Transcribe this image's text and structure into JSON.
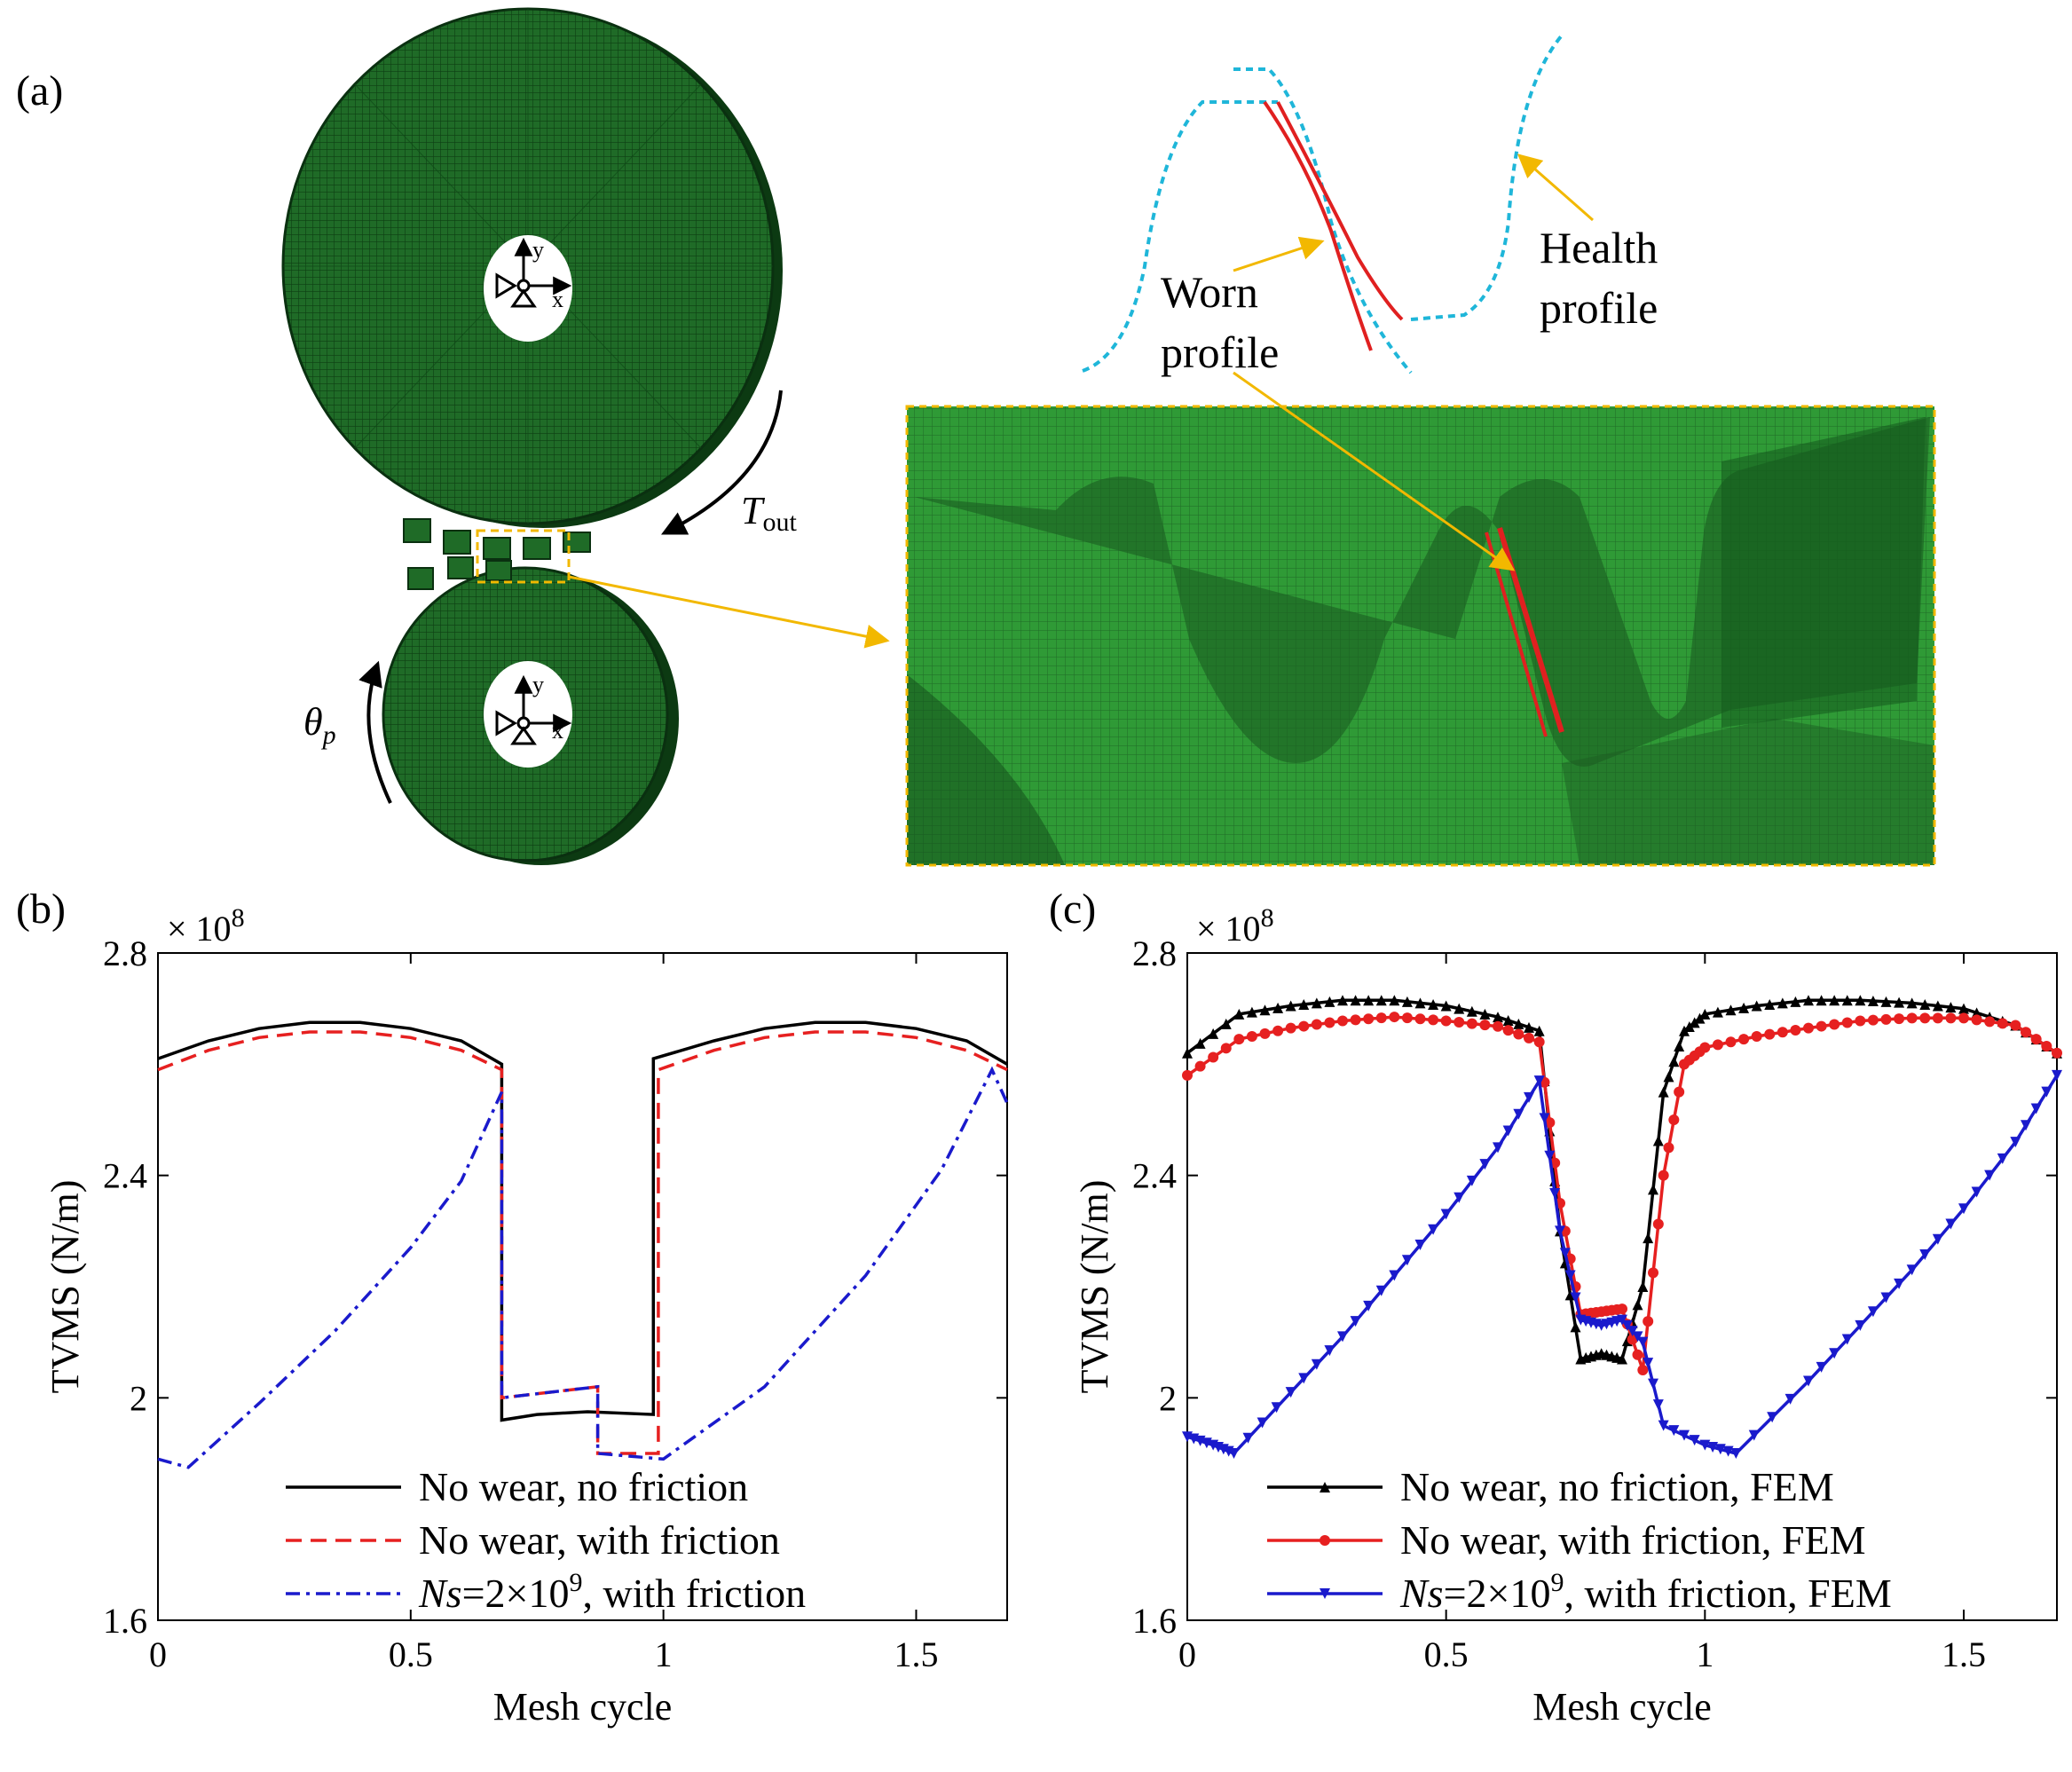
{
  "panel_labels": {
    "a": "(a)",
    "b": "(b)",
    "c": "(c)"
  },
  "colors": {
    "mesh_green": "#2f8f2f",
    "mesh_dark": "#0f4a16",
    "arrow_orange": "#f2b800",
    "worn_red": "#e02020",
    "health_cyan": "#1fb6d9",
    "series_black": "#000000",
    "series_red": "#e62020",
    "series_blue": "#1a1acc"
  },
  "fem_annotations": {
    "t_out_symbol": "T",
    "t_out_sub": "out",
    "theta_symbol": "θ",
    "theta_sub": "p",
    "axis_y": "y",
    "axis_x": "x",
    "worn_label_line1": "Worn",
    "worn_label_line2": "profile",
    "health_label_line1": "Health",
    "health_label_line2": "profile"
  },
  "chart_data": [
    {
      "type": "line",
      "panel": "(b)",
      "xlabel": "Mesh cycle",
      "ylabel": "TVMS (N/m)",
      "y_multiplier": "× 10",
      "y_multiplier_exp": "8",
      "xlim": [
        0,
        1.68
      ],
      "ylim": [
        1.6,
        2.8
      ],
      "xticks": [
        0,
        0.5,
        1,
        1.5
      ],
      "xtick_labels": [
        "0",
        "0.5",
        "1",
        "1.5"
      ],
      "yticks": [
        1.6,
        2.0,
        2.4,
        2.8
      ],
      "ytick_labels": [
        "1.6",
        "2",
        "2.4",
        "2.8"
      ],
      "grid": false,
      "legend_position": "bottom-center",
      "series": [
        {
          "name": "No wear, no friction",
          "color": "#000000",
          "dash": "solid",
          "x": [
            0,
            0.1,
            0.2,
            0.3,
            0.4,
            0.5,
            0.6,
            0.68,
            0.68,
            0.75,
            0.85,
            0.98,
            0.98,
            1.1,
            1.2,
            1.3,
            1.4,
            1.5,
            1.6,
            1.68
          ],
          "y": [
            2.61,
            2.642,
            2.664,
            2.675,
            2.675,
            2.664,
            2.642,
            2.6,
            1.96,
            1.97,
            1.975,
            1.97,
            2.61,
            2.642,
            2.664,
            2.675,
            2.675,
            2.664,
            2.642,
            2.6
          ]
        },
        {
          "name": "No wear, with friction",
          "color": "#e62020",
          "dash": "dashed",
          "x": [
            0,
            0.1,
            0.2,
            0.3,
            0.4,
            0.5,
            0.6,
            0.68,
            0.68,
            0.87,
            0.87,
            0.99,
            0.99,
            1.1,
            1.2,
            1.3,
            1.4,
            1.5,
            1.6,
            1.68
          ],
          "y": [
            2.59,
            2.625,
            2.648,
            2.658,
            2.658,
            2.648,
            2.625,
            2.59,
            2.0,
            2.02,
            1.9,
            1.9,
            2.59,
            2.625,
            2.648,
            2.658,
            2.658,
            2.648,
            2.625,
            2.59
          ]
        },
        {
          "name": "Ns=2×10⁹, with friction",
          "color": "#1a1acc",
          "dash": "dashdot",
          "x": [
            0,
            0.06,
            0.2,
            0.35,
            0.5,
            0.6,
            0.66,
            0.68,
            0.68,
            0.87,
            0.87,
            1.0,
            1.2,
            1.4,
            1.55,
            1.65,
            1.68
          ],
          "y": [
            1.89,
            1.875,
            1.99,
            2.12,
            2.27,
            2.39,
            2.51,
            2.55,
            2.0,
            2.02,
            1.9,
            1.89,
            2.02,
            2.22,
            2.41,
            2.59,
            2.53
          ]
        }
      ]
    },
    {
      "type": "line",
      "panel": "(c)",
      "xlabel": "Mesh cycle",
      "ylabel": "TVMS (N/m)",
      "y_multiplier": "× 10",
      "y_multiplier_exp": "8",
      "xlim": [
        0,
        1.68
      ],
      "ylim": [
        1.6,
        2.8
      ],
      "xticks": [
        0,
        0.5,
        1,
        1.5
      ],
      "xtick_labels": [
        "0",
        "0.5",
        "1",
        "1.5"
      ],
      "yticks": [
        1.6,
        2.0,
        2.4,
        2.8
      ],
      "ytick_labels": [
        "1.6",
        "2",
        "2.4",
        "2.8"
      ],
      "grid": false,
      "legend_position": "bottom-center",
      "series": [
        {
          "name": "No wear, no friction, FEM",
          "color": "#000000",
          "marker": "triangle-up",
          "x": [
            0,
            0.1,
            0.2,
            0.3,
            0.4,
            0.5,
            0.6,
            0.68,
            0.72,
            0.76,
            0.8,
            0.84,
            0.88,
            0.92,
            0.96,
            1.0,
            1.1,
            1.2,
            1.3,
            1.4,
            1.5,
            1.6,
            1.68
          ],
          "y": [
            2.62,
            2.69,
            2.705,
            2.715,
            2.715,
            2.705,
            2.685,
            2.66,
            2.3,
            2.07,
            2.08,
            2.07,
            2.2,
            2.55,
            2.66,
            2.69,
            2.705,
            2.715,
            2.715,
            2.71,
            2.7,
            2.67,
            2.62
          ]
        },
        {
          "name": "No wear, with friction, FEM",
          "color": "#e62020",
          "marker": "circle",
          "x": [
            0,
            0.1,
            0.2,
            0.3,
            0.4,
            0.5,
            0.6,
            0.68,
            0.72,
            0.76,
            0.8,
            0.84,
            0.88,
            0.92,
            0.96,
            1.0,
            1.1,
            1.2,
            1.3,
            1.4,
            1.5,
            1.6,
            1.68
          ],
          "y": [
            2.58,
            2.645,
            2.665,
            2.678,
            2.685,
            2.678,
            2.668,
            2.64,
            2.35,
            2.15,
            2.155,
            2.16,
            2.05,
            2.4,
            2.6,
            2.63,
            2.65,
            2.665,
            2.678,
            2.683,
            2.683,
            2.67,
            2.62
          ]
        },
        {
          "name": "Ns=2×10⁹, with friction, FEM",
          "color": "#1a1acc",
          "marker": "triangle-down",
          "x": [
            0,
            0.05,
            0.09,
            0.2,
            0.3,
            0.4,
            0.5,
            0.6,
            0.68,
            0.72,
            0.76,
            0.8,
            0.84,
            0.88,
            0.92,
            1.0,
            1.06,
            1.2,
            1.3,
            1.4,
            1.5,
            1.6,
            1.68
          ],
          "y": [
            1.93,
            1.915,
            1.9,
            2.01,
            2.11,
            2.22,
            2.33,
            2.45,
            2.57,
            2.3,
            2.14,
            2.13,
            2.14,
            2.1,
            1.95,
            1.915,
            1.9,
            2.03,
            2.13,
            2.23,
            2.34,
            2.46,
            2.58
          ]
        }
      ]
    }
  ]
}
